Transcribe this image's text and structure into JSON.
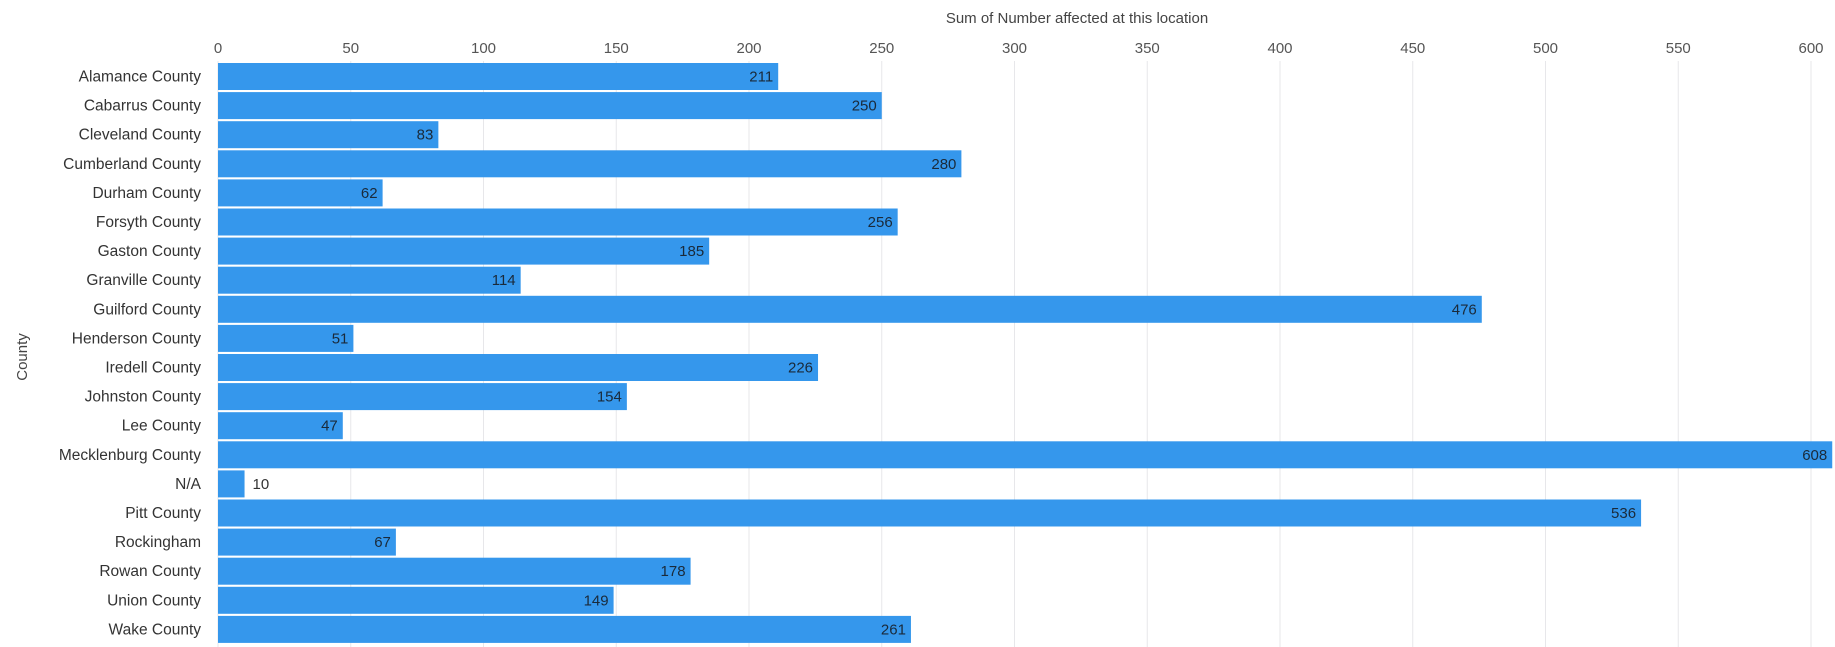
{
  "chart_data": {
    "type": "bar",
    "orientation": "horizontal",
    "title": "",
    "xlabel": "Sum of Number affected at this location",
    "ylabel": "County",
    "xlim": [
      0,
      610
    ],
    "x_ticks": [
      0,
      50,
      100,
      150,
      200,
      250,
      300,
      350,
      400,
      450,
      500,
      550,
      600
    ],
    "x_axis_position": "top",
    "grid": true,
    "legend": "none",
    "bar_color": "#3597ec",
    "categories": [
      "Alamance County",
      "Cabarrus County",
      "Cleveland County",
      "Cumberland County",
      "Durham County",
      "Forsyth County",
      "Gaston County",
      "Granville County",
      "Guilford County",
      "Henderson County",
      "Iredell County",
      "Johnston County",
      "Lee County",
      "Mecklenburg County",
      "N/A",
      "Pitt County",
      "Rockingham",
      "Rowan County",
      "Union County",
      "Wake County"
    ],
    "values": [
      211,
      250,
      83,
      280,
      62,
      256,
      185,
      114,
      476,
      51,
      226,
      154,
      47,
      608,
      10,
      536,
      67,
      178,
      149,
      261
    ]
  }
}
